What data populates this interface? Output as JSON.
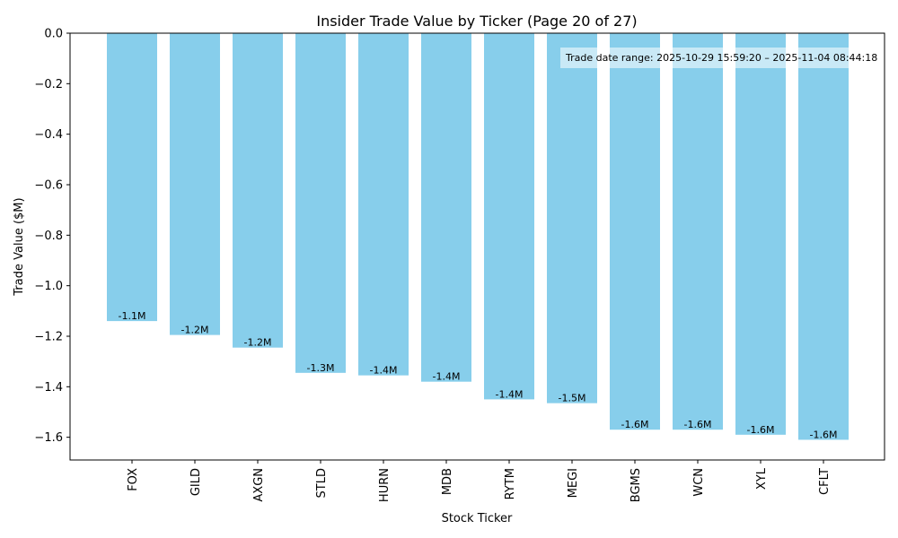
{
  "chart_data": {
    "type": "bar",
    "title": "Insider Trade Value by Ticker (Page 20 of 27)",
    "xlabel": "Stock Ticker",
    "ylabel": "Trade Value ($M)",
    "categories": [
      "FOX",
      "GILD",
      "AXGN",
      "STLD",
      "HURN",
      "MDB",
      "RYTM",
      "MEGI",
      "BGMS",
      "WCN",
      "XYL",
      "CFLT"
    ],
    "values": [
      -1.14,
      -1.195,
      -1.245,
      -1.345,
      -1.355,
      -1.38,
      -1.45,
      -1.465,
      -1.57,
      -1.57,
      -1.59,
      -1.61
    ],
    "data_labels": [
      "-1.1M",
      "-1.2M",
      "-1.2M",
      "-1.3M",
      "-1.4M",
      "-1.4M",
      "-1.4M",
      "-1.5M",
      "-1.6M",
      "-1.6M",
      "-1.6M",
      "-1.6M"
    ],
    "ylim": [
      -1.69,
      0.0
    ],
    "yticks": [
      0.0,
      -0.2,
      -0.4,
      -0.6,
      -0.8,
      -1.0,
      -1.2,
      -1.4,
      -1.6
    ],
    "ytick_labels": [
      "0.0",
      "−0.2",
      "−0.4",
      "−0.6",
      "−0.8",
      "−1.0",
      "−1.2",
      "−1.4",
      "−1.6"
    ],
    "bar_color": "#87CEEB",
    "grid": false,
    "annotation": "Trade date range: 2025-10-29 15:59:20 – 2025-11-04 08:44:18",
    "annotation_placement": "top-right"
  }
}
